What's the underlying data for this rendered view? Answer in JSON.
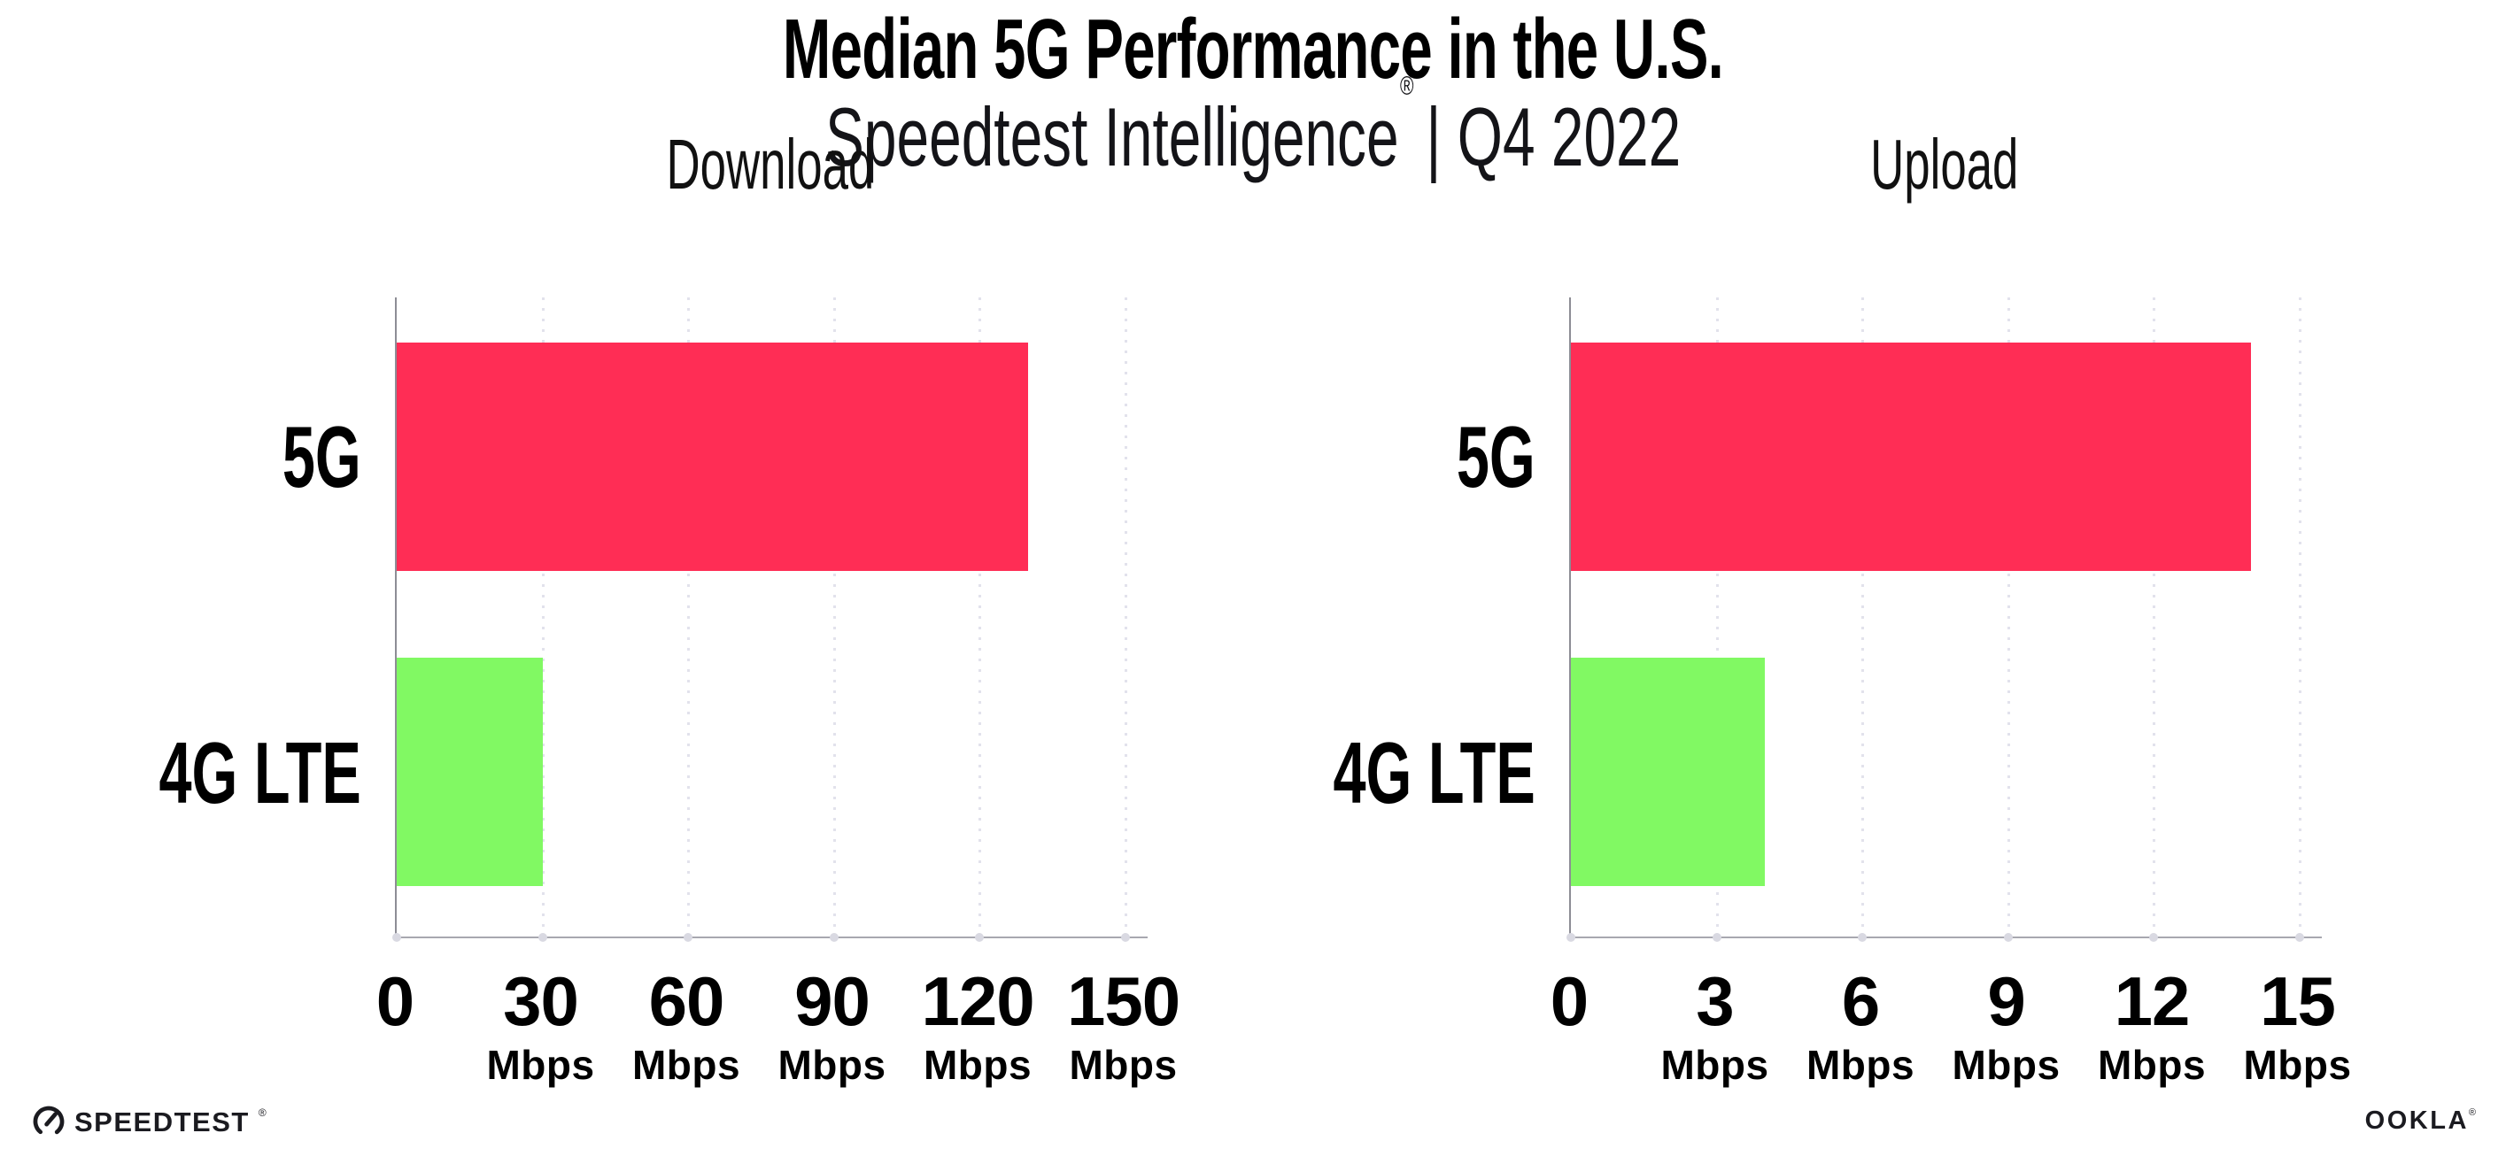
{
  "header": {
    "title": "Median 5G Performance in the U.S.",
    "subtitle_brand": "Speedtest Intelligence",
    "subtitle_reg": "®",
    "subtitle_suffix": "| Q4 2022"
  },
  "colors": {
    "bar_5g": "#FF2D55",
    "bar_4g_lte": "#81F963",
    "x_axis_line": "#A8A8B0",
    "y_axis_line": "#8D8D95",
    "gridline": "#E2E2EC",
    "tick_dot": "#D9D9E2",
    "text": "#000000"
  },
  "chart_data": [
    {
      "type": "bar",
      "orientation": "horizontal",
      "title": "Download",
      "categories": [
        "5G",
        "4G LTE"
      ],
      "values": [
        130,
        30
      ],
      "unit": "Mbps",
      "ticks": [
        0,
        30,
        60,
        90,
        120,
        150
      ],
      "xlim": [
        0,
        154.6
      ],
      "series_colors": [
        "#FF2D55",
        "#81F963"
      ],
      "grid": "dotted-vertical",
      "legend": "none"
    },
    {
      "type": "bar",
      "orientation": "horizontal",
      "title": "Upload",
      "categories": [
        "5G",
        "4G LTE"
      ],
      "values": [
        14,
        4
      ],
      "unit": "Mbps",
      "ticks": [
        0,
        3,
        6,
        9,
        12,
        15
      ],
      "xlim": [
        0,
        15.46
      ],
      "series_colors": [
        "#FF2D55",
        "#81F963"
      ],
      "grid": "dotted-vertical",
      "legend": "none"
    }
  ],
  "footer": {
    "speedtest_label": "SPEEDTEST",
    "speedtest_reg": "®",
    "speedtest_icon": "speedometer-gauge-icon",
    "ookla_label": "OOKLA",
    "ookla_reg": "®"
  }
}
